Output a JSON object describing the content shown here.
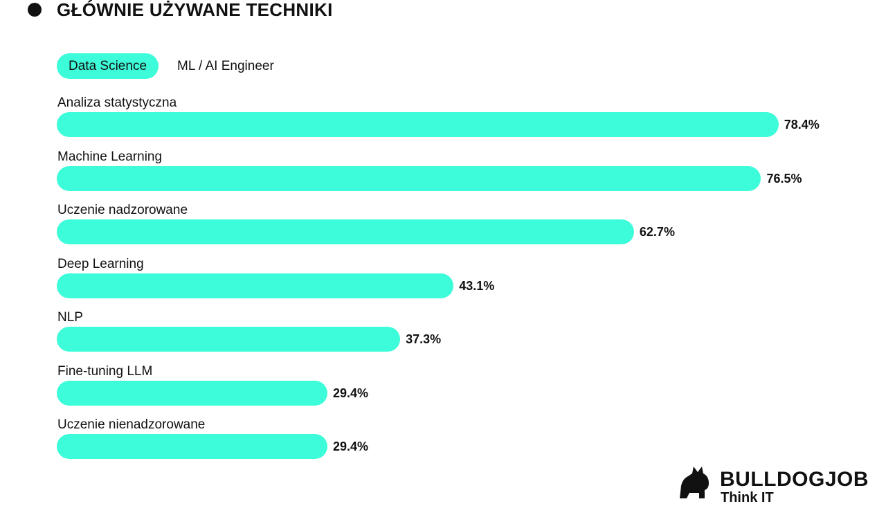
{
  "header": {
    "title": "GŁÓWNIE UŻYWANE TECHNIKI"
  },
  "tabs": [
    {
      "label": "Data Science",
      "active": true
    },
    {
      "label": "ML / AI Engineer",
      "active": false
    }
  ],
  "colors": {
    "bar": "#3dfcd9",
    "text": "#111111",
    "background": "#ffffff"
  },
  "chart_data": {
    "type": "bar",
    "orientation": "horizontal",
    "unit": "%",
    "categories": [
      "Analiza statystyczna",
      "Machine Learning",
      "Uczenie nadzorowane",
      "Deep Learning",
      "NLP",
      "Fine-tuning LLM",
      "Uczenie nienadzorowane"
    ],
    "values": [
      78.4,
      76.5,
      62.7,
      43.1,
      37.3,
      29.4,
      29.4
    ],
    "value_labels": [
      "78.4%",
      "76.5%",
      "62.7%",
      "43.1%",
      "37.3%",
      "29.4%",
      "29.4%"
    ],
    "xlim": [
      0,
      100
    ],
    "grid": false,
    "legend": "none"
  },
  "logo": {
    "brand": "BULLDOGJOB",
    "tagline": "Think IT",
    "icon": "bulldog-icon"
  }
}
